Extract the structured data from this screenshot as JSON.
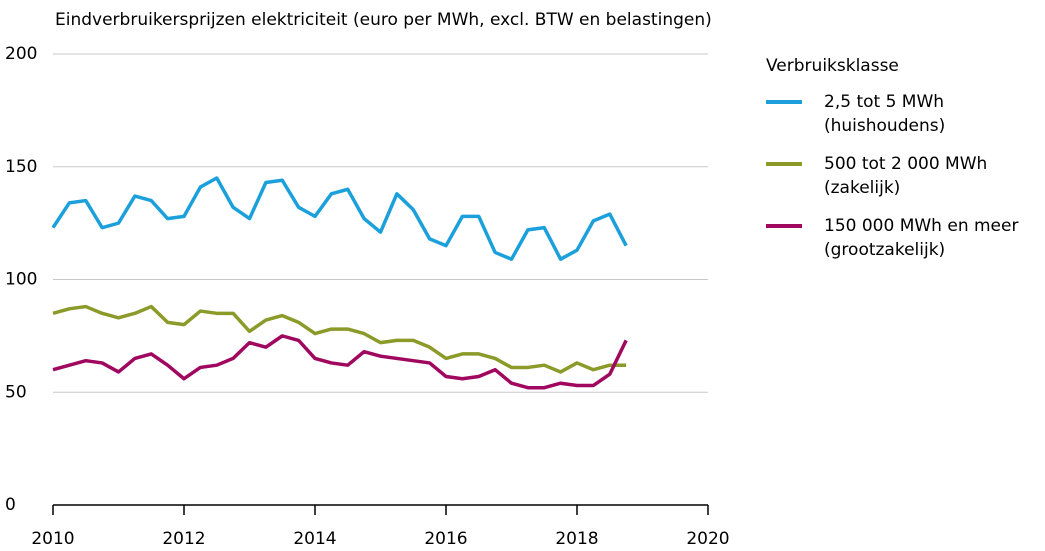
{
  "chart_data": {
    "type": "line",
    "title": "Eindverbruikersprijzen elektriciteit (euro per MWh, excl. BTW en belastingen)",
    "legend_title": "Verbruiksklasse",
    "x": [
      2010,
      2010.25,
      2010.5,
      2010.75,
      2011,
      2011.25,
      2011.5,
      2011.75,
      2012,
      2012.25,
      2012.5,
      2012.75,
      2013,
      2013.25,
      2013.5,
      2013.75,
      2014,
      2014.25,
      2014.5,
      2014.75,
      2015,
      2015.25,
      2015.5,
      2015.75,
      2016,
      2016.25,
      2016.5,
      2016.75,
      2017,
      2017.25,
      2017.5,
      2017.75,
      2018,
      2018.25,
      2018.5,
      2018.75
    ],
    "series": [
      {
        "name": "2,5 tot 5 MWh\n(huishoudens)",
        "color": "#1ba0dc",
        "values": [
          123,
          134,
          135,
          123,
          125,
          137,
          135,
          127,
          128,
          141,
          145,
          132,
          127,
          143,
          144,
          132,
          128,
          138,
          140,
          127,
          121,
          138,
          131,
          118,
          115,
          128,
          128,
          112,
          109,
          122,
          123,
          109,
          113,
          126,
          129,
          115
        ]
      },
      {
        "name": "500 tot 2 000 MWh\n(zakelijk)",
        "color": "#8c9a2a",
        "values": [
          85,
          87,
          88,
          85,
          83,
          85,
          88,
          81,
          80,
          86,
          85,
          85,
          77,
          82,
          84,
          81,
          76,
          78,
          78,
          76,
          72,
          73,
          73,
          70,
          65,
          67,
          67,
          65,
          61,
          61,
          62,
          59,
          63,
          60,
          62,
          62
        ]
      },
      {
        "name": "150 000 MWh en meer\n(grootzakelijk)",
        "color": "#a0075f",
        "values": [
          60,
          62,
          64,
          63,
          59,
          65,
          67,
          62,
          56,
          61,
          62,
          65,
          72,
          70,
          75,
          73,
          65,
          63,
          62,
          68,
          66,
          65,
          64,
          63,
          57,
          56,
          57,
          60,
          54,
          52,
          52,
          54,
          53,
          53,
          58,
          73
        ]
      }
    ],
    "xlim": [
      2010,
      2020
    ],
    "xticks": [
      2010,
      2012,
      2014,
      2016,
      2018,
      2020
    ],
    "ylim": [
      0,
      200
    ],
    "yticks": [
      0,
      50,
      100,
      150,
      200
    ],
    "grid": true,
    "legend": "right"
  }
}
